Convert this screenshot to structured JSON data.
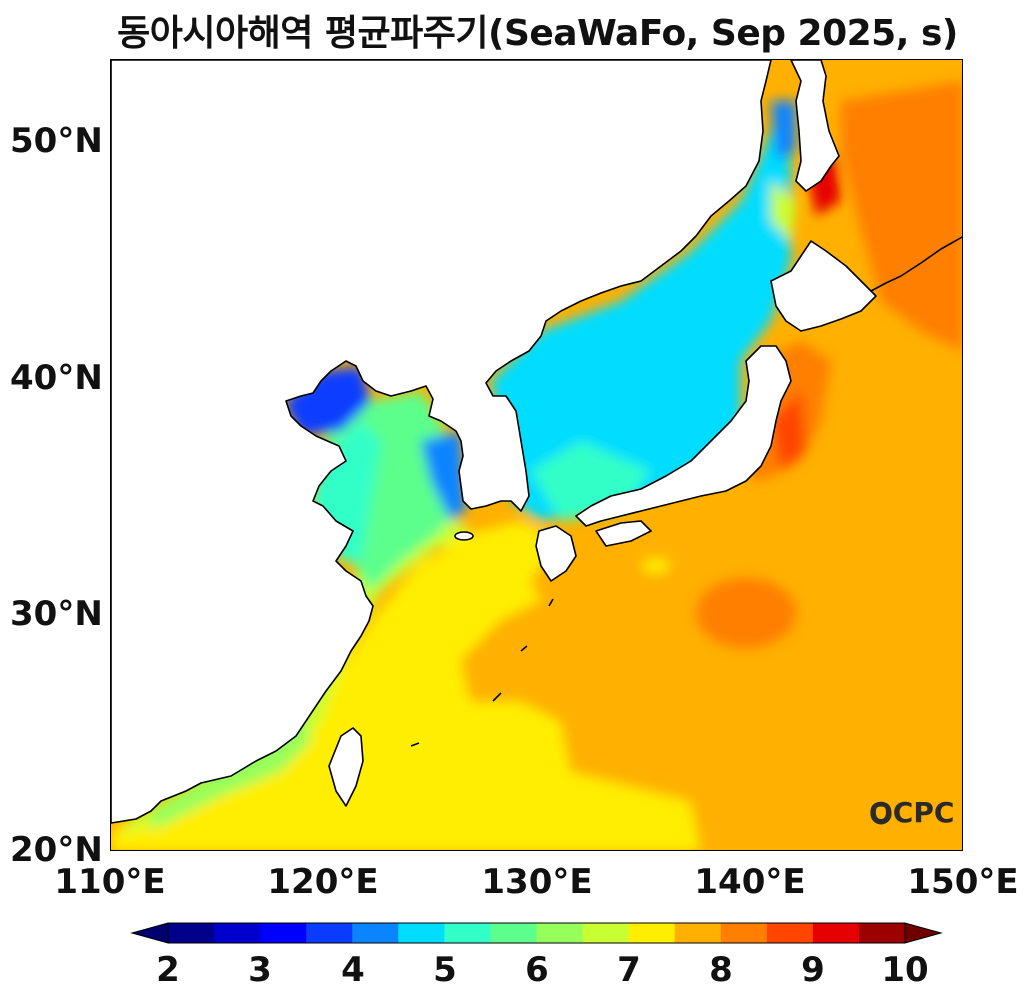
{
  "title": "동아시아해역 평균파주기(SeaWaFo, Sep 2025, s)",
  "logo_text": "OCPC",
  "map": {
    "region": "East Asia seas",
    "extent": {
      "lon": [
        110,
        150
      ],
      "lat": [
        20,
        53.5
      ]
    },
    "variable": "mean wave period",
    "units": "s"
  },
  "axes": {
    "lat_ticks": [
      "50°N",
      "40°N",
      "30°N",
      "20°N"
    ],
    "lon_ticks": [
      "110°E",
      "120°E",
      "130°E",
      "140°E",
      "150°E"
    ]
  },
  "colorbar": {
    "tick_labels": [
      "2",
      "3",
      "4",
      "5",
      "6",
      "7",
      "8",
      "9",
      "10"
    ],
    "min": 2,
    "max": 10,
    "step": 0.5,
    "colors": [
      "#00008b",
      "#0000cd",
      "#0000ff",
      "#0a3cff",
      "#0a84ff",
      "#00ddff",
      "#32ffc8",
      "#5cff8c",
      "#96ff5c",
      "#c8ff32",
      "#ffee00",
      "#ffb000",
      "#ff7f00",
      "#ff4500",
      "#e60000",
      "#9c0000"
    ],
    "under_color": "#00006e",
    "over_color": "#6e0000"
  }
}
